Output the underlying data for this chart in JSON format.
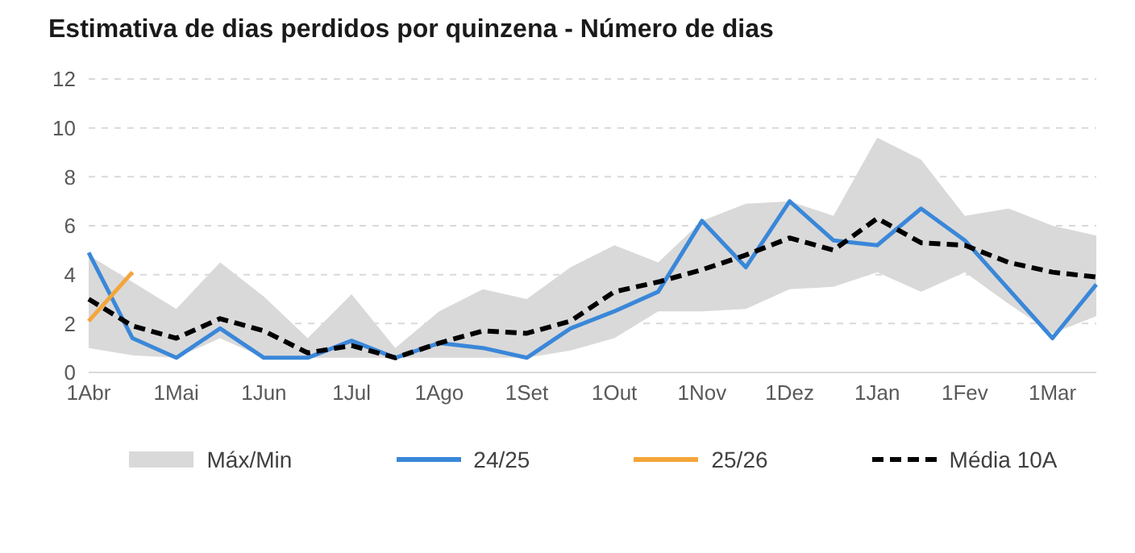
{
  "chart_data": {
    "type": "line",
    "title": "Estimativa de dias perdidos por quinzena - Número de dias",
    "categories": [
      "1Abr",
      null,
      "1Mai",
      null,
      "1Jun",
      null,
      "1Jul",
      null,
      "1Ago",
      null,
      "1Set",
      null,
      "1Out",
      null,
      "1Nov",
      null,
      "1Dez",
      null,
      "1Jan",
      null,
      "1Fev",
      null,
      "1Mar",
      null
    ],
    "series": [
      {
        "name": "24/25",
        "color": "#3a87d9",
        "line_style": "solid",
        "values": [
          4.9,
          1.4,
          0.6,
          1.8,
          0.6,
          0.6,
          1.3,
          0.6,
          1.2,
          1.0,
          0.6,
          1.8,
          2.5,
          3.3,
          6.2,
          4.3,
          7.0,
          5.4,
          5.2,
          6.7,
          5.4,
          3.4,
          1.4,
          3.6
        ]
      },
      {
        "name": "25/26",
        "color": "#f4a53a",
        "line_style": "solid",
        "values": [
          2.1,
          4.1,
          null,
          null,
          null,
          null,
          null,
          null,
          null,
          null,
          null,
          null,
          null,
          null,
          null,
          null,
          null,
          null,
          null,
          null,
          null,
          null,
          null,
          null
        ]
      },
      {
        "name": "Média 10A",
        "color": "#000000",
        "line_style": "dashed",
        "values": [
          3.0,
          1.9,
          1.4,
          2.2,
          1.7,
          0.8,
          1.1,
          0.6,
          1.2,
          1.7,
          1.6,
          2.1,
          3.3,
          3.7,
          4.2,
          4.8,
          5.5,
          5.0,
          6.3,
          5.3,
          5.2,
          4.5,
          4.1,
          3.9
        ],
        "lower": [
          1.0,
          0.7,
          0.6,
          1.4,
          0.6,
          0.6,
          0.6,
          0.6,
          0.6,
          0.6,
          0.6,
          0.9,
          1.4,
          2.5,
          2.5,
          2.6,
          3.4,
          3.5,
          4.1,
          3.3,
          4.1,
          2.8,
          1.6,
          2.3
        ],
        "upper": [
          4.8,
          3.7,
          2.6,
          4.5,
          3.1,
          1.4,
          3.2,
          1.0,
          2.5,
          3.4,
          3.0,
          4.3,
          5.2,
          4.5,
          6.2,
          6.9,
          7.0,
          6.4,
          9.6,
          8.7,
          6.4,
          6.7,
          6.0,
          5.6
        ]
      }
    ],
    "annotations": [
      "Máx/Min"
    ],
    "ylim": [
      0,
      12
    ],
    "yticks": [
      0,
      2,
      4,
      6,
      8,
      10,
      12
    ],
    "grid": "y",
    "legend": "bottom",
    "marker": "none"
  }
}
